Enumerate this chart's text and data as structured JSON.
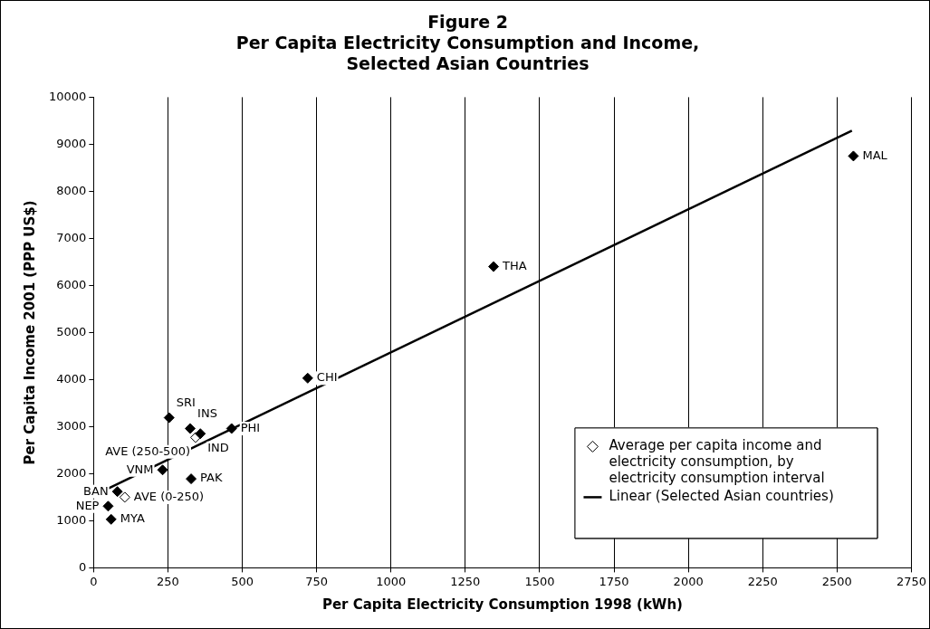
{
  "chart_data": {
    "type": "scatter",
    "title": "Figure 2\nPer Capita Electricity Consumption and Income,\nSelected Asian Countries",
    "xlabel": "Per Capita Electricity Consumption 1998 (kWh)",
    "ylabel": "Per Capita Income 2001 (PPP US$)",
    "xlim": [
      0,
      2750
    ],
    "xticks": [
      0,
      250,
      500,
      750,
      1000,
      1250,
      1500,
      1750,
      2000,
      2250,
      2500,
      2750
    ],
    "ylim": [
      0,
      10000
    ],
    "yticks": [
      0,
      1000,
      2000,
      3000,
      4000,
      5000,
      6000,
      7000,
      8000,
      9000,
      10000
    ],
    "grid": "x",
    "legend": "bottom right",
    "marker": "diamond",
    "series": [
      {
        "color": "#000000",
        "x": [
          2555,
          1345,
          720,
          464,
          254,
          325,
          359,
          232,
          328,
          80,
          49,
          59
        ],
        "values": [
          8750,
          6400,
          4030,
          2960,
          3190,
          2960,
          2850,
          2080,
          1890,
          1620,
          1310,
          1030
        ]
      },
      {
        "name": "Average per capita income and electricity consumption, by electricity consumption interval",
        "color": "#ffffff",
        "x": [
          343,
          105
        ],
        "values": [
          2770,
          1500
        ]
      },
      {
        "name": "Linear (Selected Asian countries)",
        "type": "line",
        "marker": "none",
        "color": "#000000",
        "x": [
          50,
          2550
        ],
        "values": [
          1690,
          9290
        ]
      }
    ],
    "annotations": [
      {
        "text": "MAL",
        "x": 2555,
        "y": 8750
      },
      {
        "text": "THA",
        "x": 1345,
        "y": 6400
      },
      {
        "text": "CHI",
        "x": 720,
        "y": 4030
      },
      {
        "text": "PHI",
        "x": 464,
        "y": 2960
      },
      {
        "text": "SRI",
        "x": 254,
        "y": 3190
      },
      {
        "text": "INS",
        "x": 325,
        "y": 2960
      },
      {
        "text": "IND",
        "x": 359,
        "y": 2850
      },
      {
        "text": "AVE (250-500)",
        "x": 343,
        "y": 2770
      },
      {
        "text": "VNM",
        "x": 232,
        "y": 2080
      },
      {
        "text": "PAK",
        "x": 328,
        "y": 1890
      },
      {
        "text": "BAN",
        "x": 80,
        "y": 1620
      },
      {
        "text": "AVE (0-250)",
        "x": 105,
        "y": 1500
      },
      {
        "text": "NEP",
        "x": 49,
        "y": 1310
      },
      {
        "text": "MYA",
        "x": 59,
        "y": 1030
      }
    ]
  }
}
